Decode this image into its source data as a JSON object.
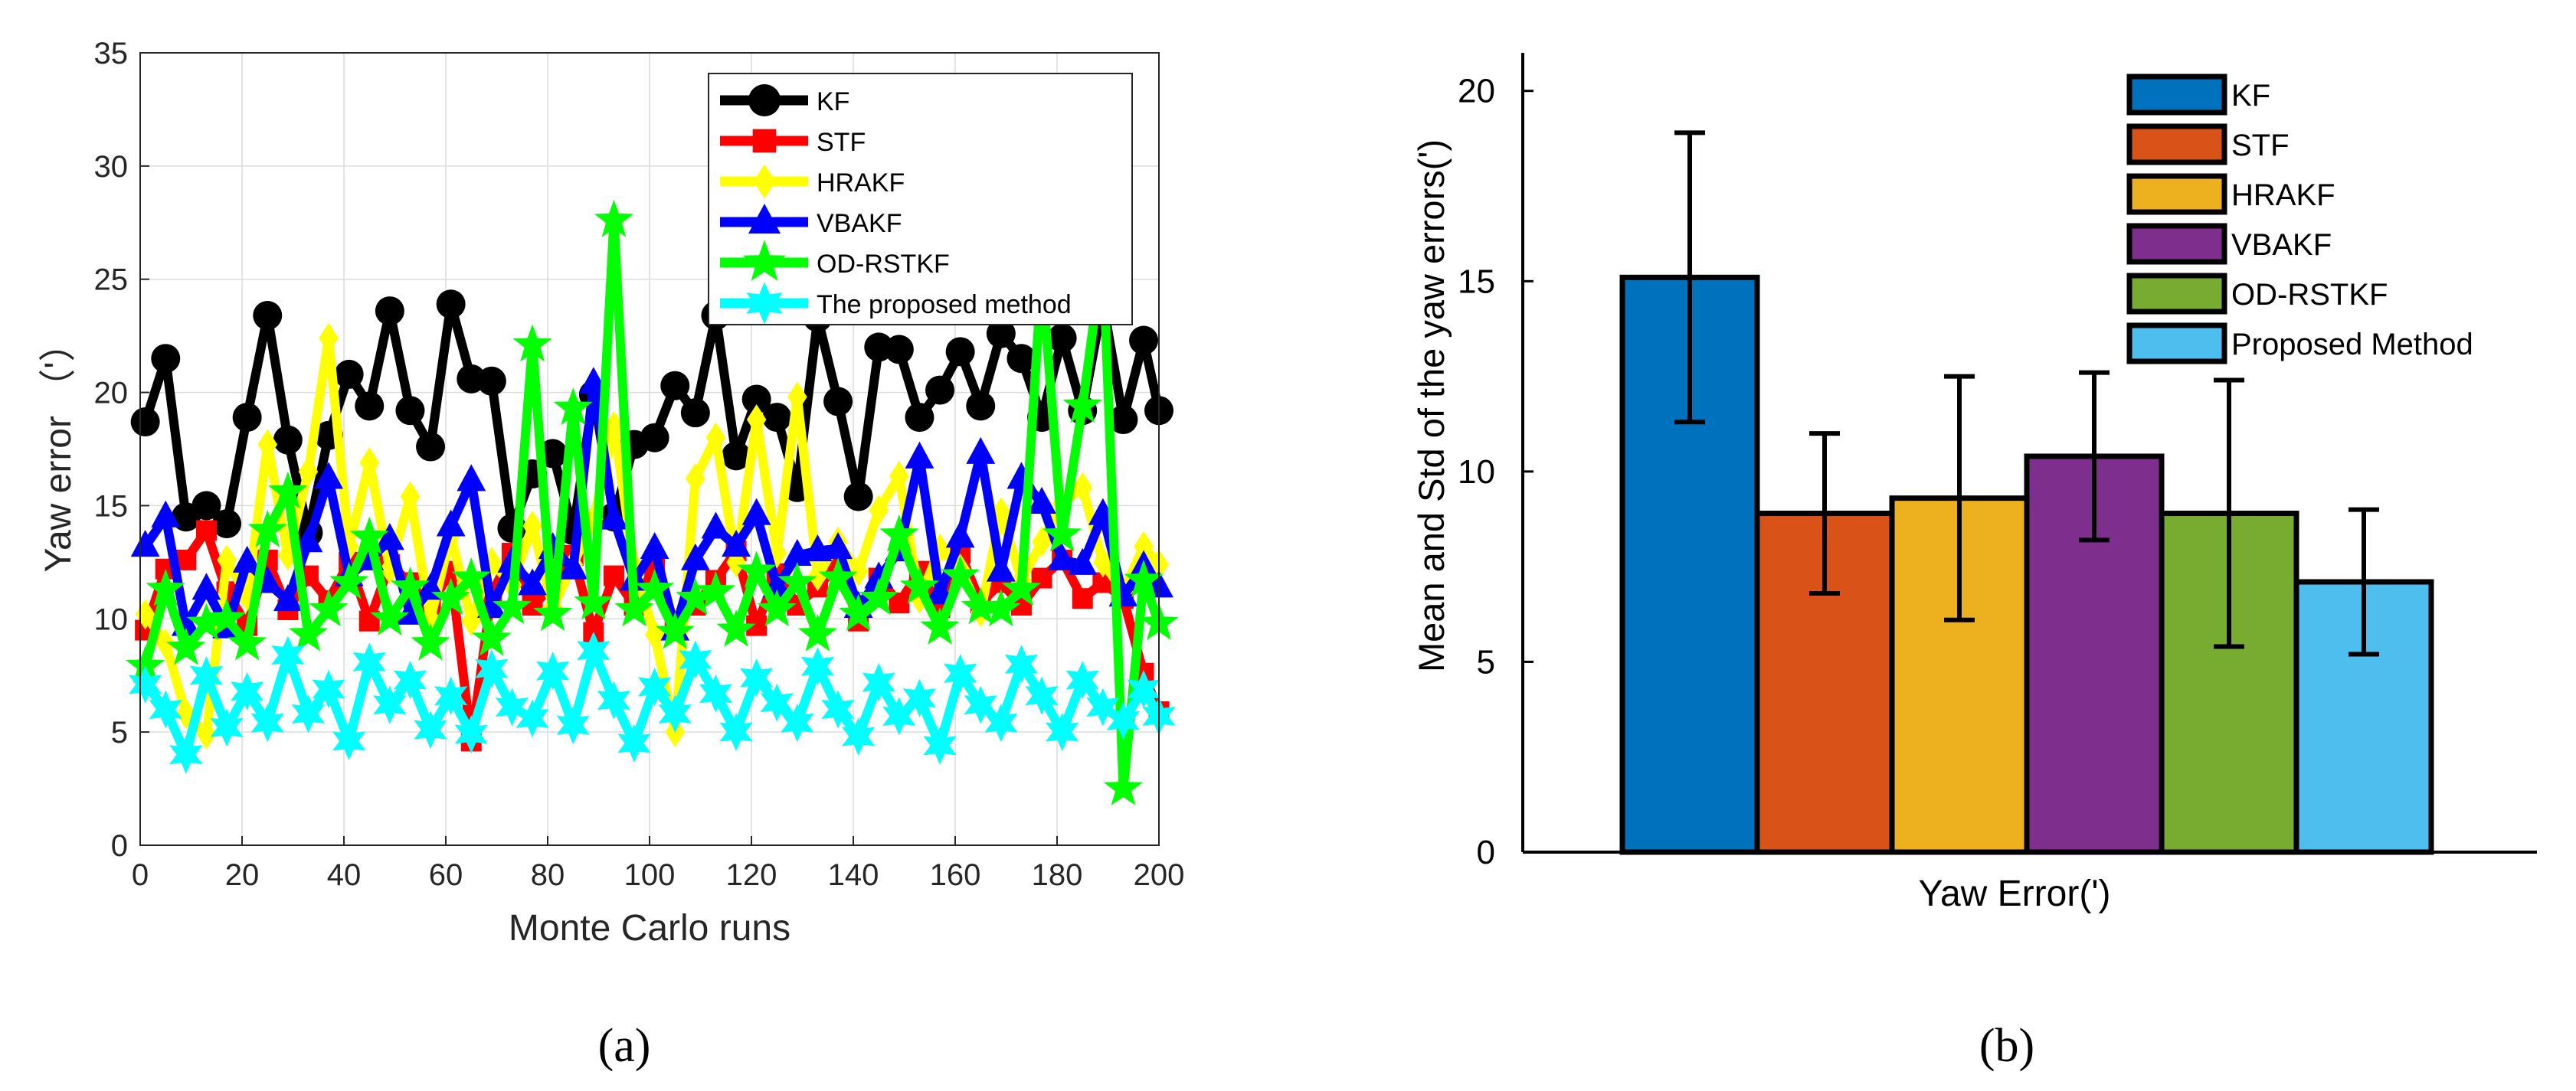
{
  "chart_data": [
    {
      "type": "line",
      "panel_label": "(a)",
      "xlabel": "Monte Carlo runs",
      "ylabel": "Yaw error （'）",
      "xlim": [
        0,
        200
      ],
      "ylim": [
        0,
        35
      ],
      "xticks": [
        "0",
        "20",
        "40",
        "60",
        "80",
        "100",
        "120",
        "140",
        "160",
        "180",
        "200"
      ],
      "yticks": [
        "0",
        "5",
        "10",
        "15",
        "20",
        "25",
        "30",
        "35"
      ],
      "grid": true,
      "legend_position": "top-right",
      "x": [
        1,
        5,
        9,
        13,
        17,
        21,
        25,
        29,
        33,
        37,
        41,
        45,
        49,
        53,
        57,
        61,
        65,
        69,
        73,
        77,
        81,
        85,
        89,
        93,
        97,
        101,
        105,
        109,
        113,
        117,
        121,
        125,
        129,
        133,
        137,
        141,
        145,
        149,
        153,
        157,
        161,
        165,
        169,
        173,
        177,
        181,
        185,
        189,
        193,
        197,
        200
      ],
      "series": [
        {
          "name": "KF",
          "color": "#000000",
          "marker": "circle",
          "values": [
            18.7,
            21.5,
            14.5,
            15.0,
            14.2,
            18.9,
            23.4,
            17.9,
            13.8,
            18.1,
            20.8,
            19.4,
            23.6,
            19.2,
            17.6,
            23.9,
            20.6,
            20.5,
            14.0,
            16.4,
            17.3,
            13.9,
            19.9,
            14.5,
            17.7,
            18.0,
            20.3,
            19.1,
            23.4,
            17.2,
            19.7,
            18.9,
            15.8,
            23.3,
            19.6,
            15.4,
            22.0,
            21.9,
            18.9,
            20.1,
            21.8,
            19.4,
            22.6,
            21.5,
            18.9,
            22.4,
            19.2,
            24.0,
            18.8,
            22.3,
            19.2
          ]
        },
        {
          "name": "STF",
          "color": "#ff0000",
          "marker": "square",
          "values": [
            9.5,
            12.2,
            12.6,
            13.9,
            11.2,
            9.7,
            12.6,
            10.4,
            11.9,
            10.8,
            12.5,
            9.9,
            12.4,
            11.6,
            10.6,
            12.1,
            4.6,
            11.1,
            12.9,
            10.6,
            11.4,
            12.8,
            9.4,
            11.9,
            10.6,
            12.3,
            9.8,
            10.6,
            11.7,
            13.0,
            9.7,
            12.0,
            10.6,
            11.4,
            12.4,
            9.9,
            11.8,
            10.7,
            12.1,
            10.5,
            12.9,
            10.7,
            11.6,
            10.6,
            11.8,
            12.6,
            10.9,
            11.6,
            10.9,
            7.6,
            5.9
          ]
        },
        {
          "name": "HRAKF",
          "color": "#ffff00",
          "marker": "diamond",
          "values": [
            10.2,
            8.9,
            5.8,
            4.9,
            12.6,
            11.0,
            17.7,
            12.8,
            16.5,
            22.4,
            13.2,
            16.9,
            12.2,
            15.4,
            10.0,
            13.7,
            9.9,
            12.5,
            11.5,
            14.1,
            10.5,
            12.4,
            14.4,
            18.5,
            12.3,
            9.3,
            5.0,
            16.2,
            18.0,
            12.5,
            18.8,
            12.9,
            19.8,
            11.9,
            13.4,
            12.1,
            14.8,
            16.3,
            10.9,
            13.1,
            12.2,
            10.3,
            14.7,
            11.7,
            13.4,
            15.1,
            15.8,
            12.5,
            11.2,
            13.2,
            12.4
          ]
        },
        {
          "name": "VBAKF",
          "color": "#0000ff",
          "marker": "triangle",
          "values": [
            13.2,
            14.5,
            9.7,
            11.3,
            9.6,
            12.5,
            11.6,
            10.8,
            13.4,
            16.2,
            11.9,
            12.6,
            13.5,
            10.2,
            11.3,
            14.1,
            16.1,
            10.5,
            12.5,
            11.5,
            13.1,
            12.2,
            20.4,
            14.4,
            11.7,
            13.1,
            9.5,
            12.6,
            14.0,
            13.2,
            14.6,
            11.4,
            12.8,
            13.0,
            13.1,
            10.5,
            11.8,
            13.0,
            17.1,
            11.1,
            13.6,
            17.3,
            12.1,
            16.2,
            15.1,
            12.6,
            12.4,
            14.6,
            11.0,
            12.3,
            11.4
          ]
        },
        {
          "name": "OD-RSTKF",
          "color": "#00ff00",
          "marker": "star",
          "values": [
            7.9,
            11.3,
            8.7,
            9.8,
            10.0,
            8.9,
            13.9,
            15.6,
            9.3,
            10.4,
            11.6,
            13.6,
            10.0,
            11.4,
            8.9,
            10.9,
            11.8,
            9.1,
            10.5,
            22.1,
            10.2,
            19.3,
            10.7,
            27.6,
            10.4,
            11.3,
            9.4,
            10.9,
            11.2,
            9.5,
            12.1,
            10.4,
            11.6,
            9.3,
            11.8,
            10.2,
            10.9,
            13.7,
            11.4,
            9.6,
            11.9,
            10.5,
            10.4,
            11.3,
            25.2,
            13.7,
            19.4,
            26.1,
            2.5,
            11.7,
            9.8
          ]
        },
        {
          "name": "The proposed method",
          "color": "#00ffff",
          "marker": "hexagram",
          "values": [
            7.1,
            6.0,
            4.0,
            7.5,
            5.2,
            6.8,
            5.4,
            8.4,
            5.8,
            6.9,
            4.6,
            8.1,
            6.2,
            7.3,
            5.1,
            6.6,
            4.9,
            7.8,
            6.1,
            5.6,
            7.7,
            5.3,
            8.6,
            6.4,
            4.5,
            7.0,
            5.8,
            8.2,
            6.7,
            5.0,
            7.4,
            6.3,
            5.4,
            7.9,
            6.0,
            4.8,
            7.2,
            5.7,
            6.5,
            4.4,
            7.6,
            6.2,
            5.4,
            8.0,
            6.6,
            5.0,
            7.3,
            6.1,
            5.5,
            6.9,
            5.7
          ]
        }
      ]
    },
    {
      "type": "bar",
      "panel_label": "(b)",
      "xlabel": "Yaw Error(')",
      "ylabel": "Mean and Std of the yaw errors(')",
      "ylim": [
        0,
        21
      ],
      "yticks": [
        "0",
        "5",
        "10",
        "15",
        "20"
      ],
      "grid": false,
      "legend_position": "top-right",
      "series": [
        {
          "name": "KF",
          "color": "#0072bd",
          "mean": 15.1,
          "std": 3.8
        },
        {
          "name": "STF",
          "color": "#d95319",
          "mean": 8.9,
          "std": 2.1
        },
        {
          "name": "HRAKF",
          "color": "#edb120",
          "mean": 9.3,
          "std": 3.2
        },
        {
          "name": "VBAKF",
          "color": "#7e2f8e",
          "mean": 10.4,
          "std": 2.2
        },
        {
          "name": "OD-RSTKF",
          "color": "#77ac30",
          "mean": 8.9,
          "std": 3.5
        },
        {
          "name": "Proposed Method",
          "color": "#4dbeee",
          "mean": 7.1,
          "std": 1.9
        }
      ]
    }
  ]
}
